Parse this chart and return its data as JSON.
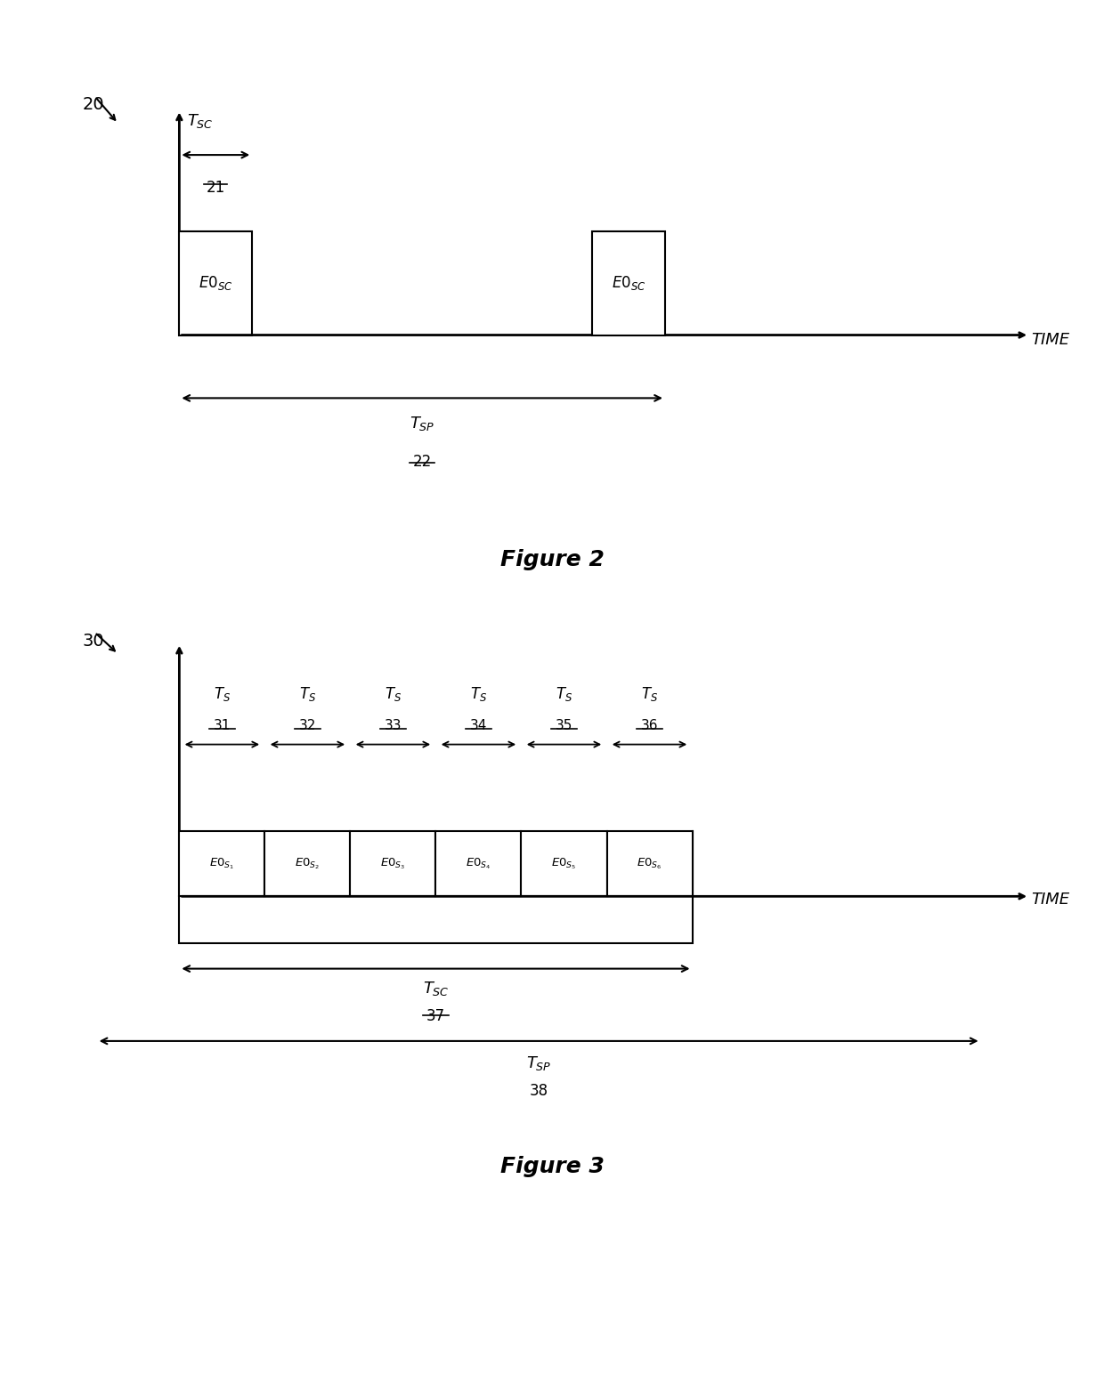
{
  "fig_width": 12.4,
  "fig_height": 15.52,
  "bg_color": "#ffffff",
  "figure2_caption": "Figure 2",
  "figure3_caption": "Figure 3"
}
